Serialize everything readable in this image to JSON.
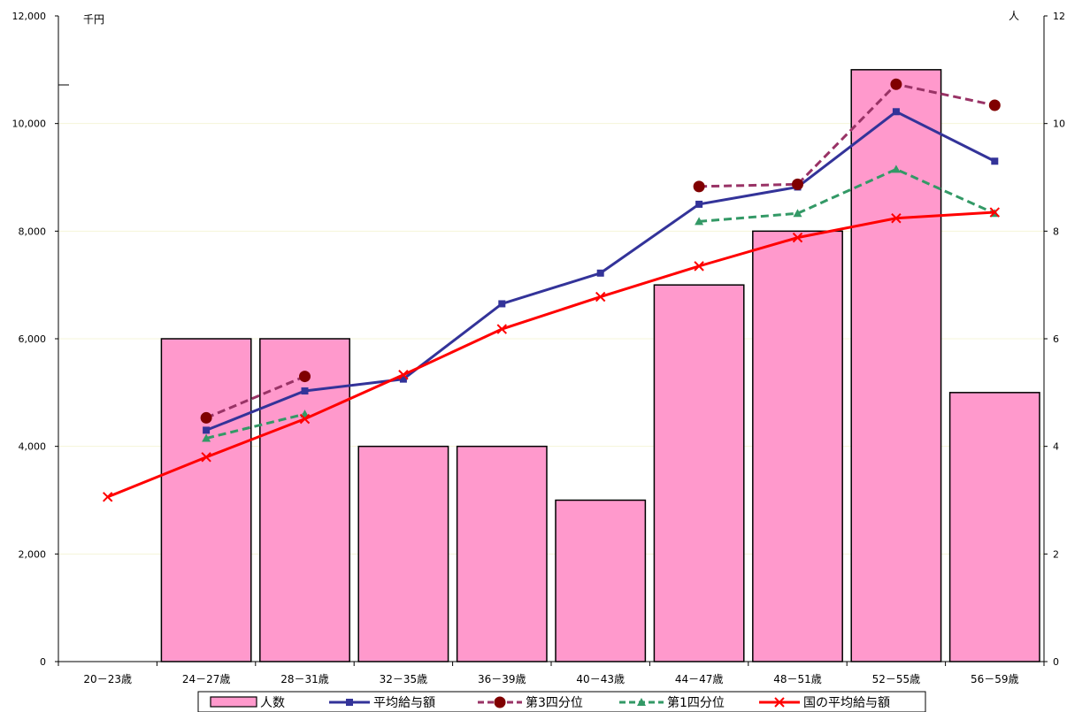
{
  "chart_data": {
    "type": "bar",
    "categories": [
      "20－23歳",
      "24－27歳",
      "28－31歳",
      "32－35歳",
      "36－39歳",
      "40－43歳",
      "44－47歳",
      "48－51歳",
      "52－55歳",
      "56－59歳"
    ],
    "y_left": {
      "unit": "千円",
      "ylim": [
        0,
        12000
      ],
      "ticks": [
        0,
        2000,
        4000,
        6000,
        8000,
        10000,
        12000
      ],
      "tick_labels": [
        "0",
        "2,000",
        "4,000",
        "6,000",
        "8,000",
        "10,000",
        "12,000"
      ]
    },
    "y_right": {
      "unit": "人",
      "ylim": [
        0,
        12
      ],
      "ticks": [
        0,
        2,
        4,
        6,
        8,
        10,
        12
      ],
      "tick_labels": [
        "0",
        "2",
        "4",
        "6",
        "8",
        "10",
        "12"
      ]
    },
    "grid": true,
    "legend_position": "bottom",
    "series": [
      {
        "name": "人数",
        "type": "bar",
        "axis": "right",
        "color": "#ff99cc",
        "values": [
          0,
          6,
          6,
          4,
          4,
          3,
          7,
          8,
          11,
          5
        ]
      },
      {
        "name": "平均給与額",
        "type": "line",
        "axis": "left",
        "color": "#333399",
        "marker": "square",
        "dash": "solid",
        "values": [
          null,
          4300,
          5030,
          5250,
          6650,
          7220,
          8500,
          8820,
          10220,
          9300
        ]
      },
      {
        "name": "第3四分位",
        "type": "line",
        "axis": "left",
        "color": "#993366",
        "marker": "circle",
        "dash": "dashed",
        "values": [
          null,
          4530,
          5300,
          null,
          null,
          null,
          8830,
          8870,
          10730,
          10340
        ]
      },
      {
        "name": "第1四分位",
        "type": "line",
        "axis": "left",
        "color": "#339966",
        "marker": "triangle",
        "dash": "dashed",
        "values": [
          null,
          4150,
          4600,
          null,
          null,
          null,
          8180,
          8330,
          9150,
          8330
        ]
      },
      {
        "name": "国の平均給与額",
        "type": "line",
        "axis": "left",
        "color": "#ff0000",
        "marker": "x",
        "dash": "solid",
        "values": [
          3060,
          3800,
          4510,
          5330,
          6180,
          6780,
          7350,
          7880,
          8240,
          8350
        ]
      }
    ]
  }
}
